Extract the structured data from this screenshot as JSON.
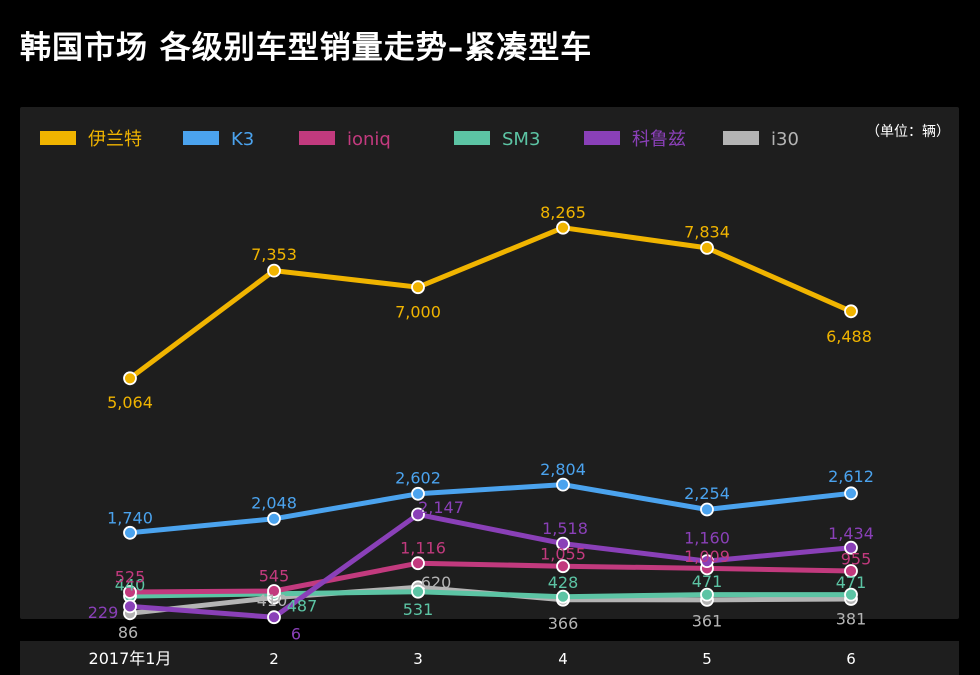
{
  "title": "韩国市场 各级别车型销量走势–紧凑型车",
  "unit_label": "（单位：辆）",
  "chart_data": {
    "type": "line",
    "categories": [
      "2017年1月",
      "2",
      "3",
      "4",
      "5",
      "6"
    ],
    "ylim": [
      0,
      9000
    ],
    "grid": false,
    "legend_position": "top",
    "series": [
      {
        "name": "伊兰特",
        "color": "#f0b400",
        "values": [
          5064,
          7353,
          7000,
          8265,
          7834,
          6488
        ],
        "labels": [
          "5,064",
          "7,353",
          "7,000",
          "8,265",
          "7,834",
          "6,488"
        ]
      },
      {
        "name": "K3",
        "color": "#4ba3ee",
        "values": [
          1740,
          2048,
          2602,
          2804,
          2254,
          2612
        ],
        "labels": [
          "1,740",
          "2,048",
          "2,602",
          "2,804",
          "2,254",
          "2,612"
        ]
      },
      {
        "name": "ioniq",
        "color": "#c23a7e",
        "values": [
          525,
          545,
          1116,
          1055,
          1009,
          955
        ],
        "labels": [
          "525",
          "545",
          "1,116",
          "1,055",
          "1,009",
          "955"
        ]
      },
      {
        "name": "SM3",
        "color": "#5cc4a4",
        "values": [
          440,
          487,
          531,
          428,
          471,
          471
        ],
        "labels": [
          "440",
          "487",
          "531",
          "428",
          "471",
          "471"
        ]
      },
      {
        "name": "科鲁兹",
        "color": "#8a40b8",
        "values": [
          229,
          6,
          2147,
          1518,
          1160,
          1434
        ],
        "labels": [
          "229",
          "6",
          "2,147",
          "1,518",
          "1,160",
          "1,434"
        ]
      },
      {
        "name": "i30",
        "color": "#b4b4b4",
        "values": [
          86,
          410,
          620,
          366,
          361,
          381
        ],
        "labels": [
          "86",
          "410",
          "620",
          "366",
          "361",
          "381"
        ]
      }
    ]
  }
}
